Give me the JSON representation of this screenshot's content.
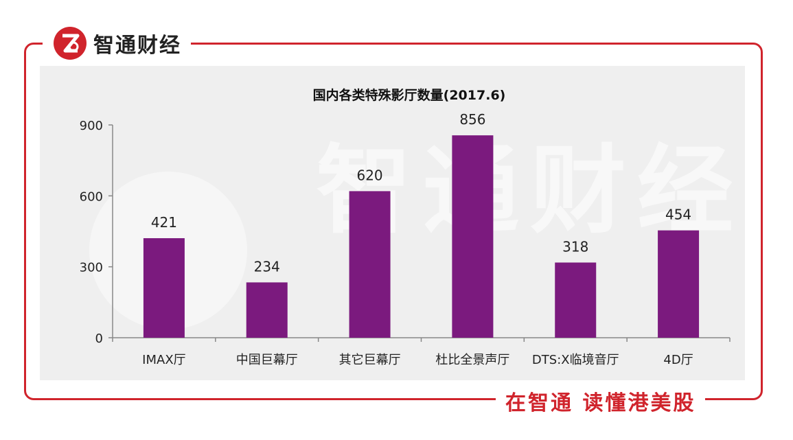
{
  "brand": {
    "name": "智通财经",
    "logo_icon": "zhitong-logo-icon"
  },
  "slogan": "在智通  读懂港美股",
  "watermark": "智通财经",
  "colors": {
    "accent": "#d0242c",
    "bar": "#7b1a7e"
  },
  "chart_data": {
    "type": "bar",
    "title": "国内各类特殊影厅数量(2017.6)",
    "categories": [
      "IMAX厅",
      "中国巨幕厅",
      "其它巨幕厅",
      "杜比全景声厅",
      "DTS:X临境音厅",
      "4D厅"
    ],
    "values": [
      421,
      234,
      620,
      856,
      318,
      454
    ],
    "data_labels": [
      "421",
      "234",
      "620",
      "856",
      "318",
      "454"
    ],
    "yticks": [
      "0",
      "300",
      "600",
      "900"
    ],
    "ytick_values": [
      0,
      300,
      600,
      900
    ],
    "ylim": [
      0,
      900
    ],
    "xlabel": "",
    "ylabel": "",
    "legend": "none",
    "grid": false
  }
}
